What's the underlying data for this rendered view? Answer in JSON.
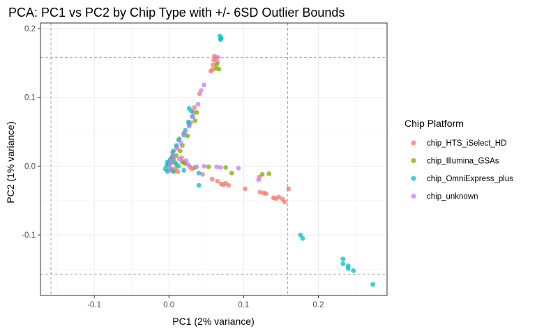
{
  "chart_data": {
    "type": "scatter",
    "title": "PCA: PC1 vs PC2 by Chip Type with +/- 6SD Outlier Bounds",
    "xlabel": "PC1 (2% variance)",
    "ylabel": "PC2 (1% variance)",
    "xlim": [
      -0.172,
      0.292
    ],
    "ylim": [
      -0.188,
      0.208
    ],
    "x_ticks": [
      -0.1,
      0.0,
      0.1,
      0.2
    ],
    "x_tick_labels": [
      "-0.1",
      "0.0",
      "0.1",
      "0.2"
    ],
    "y_ticks": [
      -0.1,
      0.0,
      0.1,
      0.2
    ],
    "y_tick_labels": [
      "-0.1",
      "0.0",
      "0.1",
      "0.2"
    ],
    "grid": true,
    "outlier_bounds": {
      "x": [
        -0.158,
        0.159
      ],
      "y": [
        -0.157,
        0.158
      ]
    },
    "legend": {
      "title": "Chip Platform",
      "position": "right"
    },
    "series": [
      {
        "name": "chip_HTS_iSelect_HD",
        "color": "#F8766D",
        "points": [
          [
            0.061,
            0.16
          ],
          [
            0.063,
            0.157
          ],
          [
            0.06,
            0.154
          ],
          [
            0.065,
            0.151
          ],
          [
            0.059,
            0.147
          ],
          [
            0.058,
            0.14
          ],
          [
            0.056,
            0.138
          ],
          [
            0.041,
            0.105
          ],
          [
            0.034,
            0.085
          ],
          [
            0.033,
            0.078
          ],
          [
            0.029,
            0.063
          ],
          [
            0.02,
            0.048
          ],
          [
            0.014,
            0.04
          ],
          [
            0.01,
            0.028
          ],
          [
            0.005,
            0.02
          ],
          [
            0.004,
            0.012
          ],
          [
            0.0,
            0.005
          ],
          [
            0.017,
            0.012
          ],
          [
            0.02,
            0.005
          ],
          [
            0.028,
            -0.001
          ],
          [
            0.031,
            -0.004
          ],
          [
            0.045,
            -0.012
          ],
          [
            0.058,
            -0.019
          ],
          [
            0.065,
            -0.022
          ],
          [
            0.07,
            -0.026
          ],
          [
            0.073,
            -0.027
          ],
          [
            0.076,
            -0.025
          ],
          [
            0.08,
            -0.028
          ],
          [
            0.102,
            -0.033
          ],
          [
            0.122,
            -0.038
          ],
          [
            0.127,
            -0.039
          ],
          [
            0.13,
            -0.04
          ],
          [
            0.121,
            -0.016
          ],
          [
            0.14,
            -0.046
          ],
          [
            0.143,
            -0.047
          ],
          [
            0.147,
            -0.045
          ],
          [
            0.152,
            -0.048
          ],
          [
            0.155,
            -0.052
          ],
          [
            0.16,
            -0.033
          ],
          [
            0.009,
            -0.003
          ],
          [
            0.012,
            -0.008
          ],
          [
            0.0,
            -0.005
          ]
        ]
      },
      {
        "name": "chip_Illumina_GSAs",
        "color": "#7CAE00",
        "points": [
          [
            0.064,
            0.148
          ],
          [
            0.067,
            0.141
          ],
          [
            0.063,
            0.142
          ],
          [
            0.037,
            0.078
          ],
          [
            0.035,
            0.066
          ],
          [
            0.025,
            0.044
          ],
          [
            0.018,
            0.03
          ],
          [
            0.015,
            0.022
          ],
          [
            0.01,
            0.015
          ],
          [
            0.006,
            0.01
          ],
          [
            0.003,
            0.006
          ],
          [
            0.01,
            0.003
          ],
          [
            0.018,
            0.006
          ],
          [
            0.022,
            0.004
          ],
          [
            0.035,
            -0.002
          ],
          [
            0.053,
            -0.001
          ],
          [
            0.076,
            -0.002
          ],
          [
            0.084,
            -0.01
          ],
          [
            0.125,
            -0.012
          ],
          [
            0.134,
            -0.011
          ],
          [
            0.003,
            -0.004
          ],
          [
            0.007,
            -0.008
          ]
        ]
      },
      {
        "name": "chip_OmniExpress_plus",
        "color": "#00BFC4",
        "points": [
          [
            0.068,
            0.189
          ],
          [
            0.07,
            0.186
          ],
          [
            0.069,
            0.184
          ],
          [
            0.027,
            0.084
          ],
          [
            0.03,
            0.08
          ],
          [
            0.032,
            0.072
          ],
          [
            0.026,
            0.064
          ],
          [
            0.027,
            0.06
          ],
          [
            0.022,
            0.052
          ],
          [
            0.02,
            0.045
          ],
          [
            0.013,
            0.038
          ],
          [
            0.01,
            0.03
          ],
          [
            0.006,
            0.022
          ],
          [
            0.005,
            0.015
          ],
          [
            0.002,
            0.01
          ],
          [
            -0.002,
            0.006
          ],
          [
            0.0,
            0.002
          ],
          [
            -0.003,
            0.001
          ],
          [
            -0.005,
            -0.004
          ],
          [
            -0.002,
            -0.008
          ],
          [
            0.005,
            -0.007
          ],
          [
            0.008,
            0.005
          ],
          [
            0.013,
            0.0
          ],
          [
            0.02,
            -0.006
          ],
          [
            0.04,
            -0.01
          ],
          [
            0.04,
            -0.028
          ],
          [
            0.176,
            -0.1
          ],
          [
            0.179,
            -0.105
          ],
          [
            0.233,
            -0.135
          ],
          [
            0.233,
            -0.142
          ],
          [
            0.24,
            -0.145
          ],
          [
            0.24,
            -0.149
          ],
          [
            0.247,
            -0.152
          ],
          [
            0.273,
            -0.172
          ]
        ]
      },
      {
        "name": "chip_unknown",
        "color": "#C77CFF",
        "points": [
          [
            0.066,
            0.158
          ],
          [
            0.047,
            0.118
          ],
          [
            0.043,
            0.11
          ],
          [
            0.039,
            0.09
          ],
          [
            0.031,
            0.072
          ],
          [
            0.027,
            0.058
          ],
          [
            0.021,
            0.048
          ],
          [
            0.016,
            0.034
          ],
          [
            0.011,
            0.026
          ],
          [
            0.007,
            0.015
          ],
          [
            0.003,
            0.008
          ],
          [
            0.002,
            0.003
          ],
          [
            0.014,
            0.01
          ],
          [
            0.023,
            0.008
          ],
          [
            0.026,
            0.002
          ],
          [
            0.037,
            -0.001
          ],
          [
            0.047,
            0.0
          ],
          [
            0.064,
            -0.001
          ],
          [
            0.069,
            -0.002
          ],
          [
            0.093,
            -0.003
          ],
          [
            0.12,
            -0.02
          ],
          [
            0.002,
            -0.006
          ]
        ]
      }
    ]
  }
}
